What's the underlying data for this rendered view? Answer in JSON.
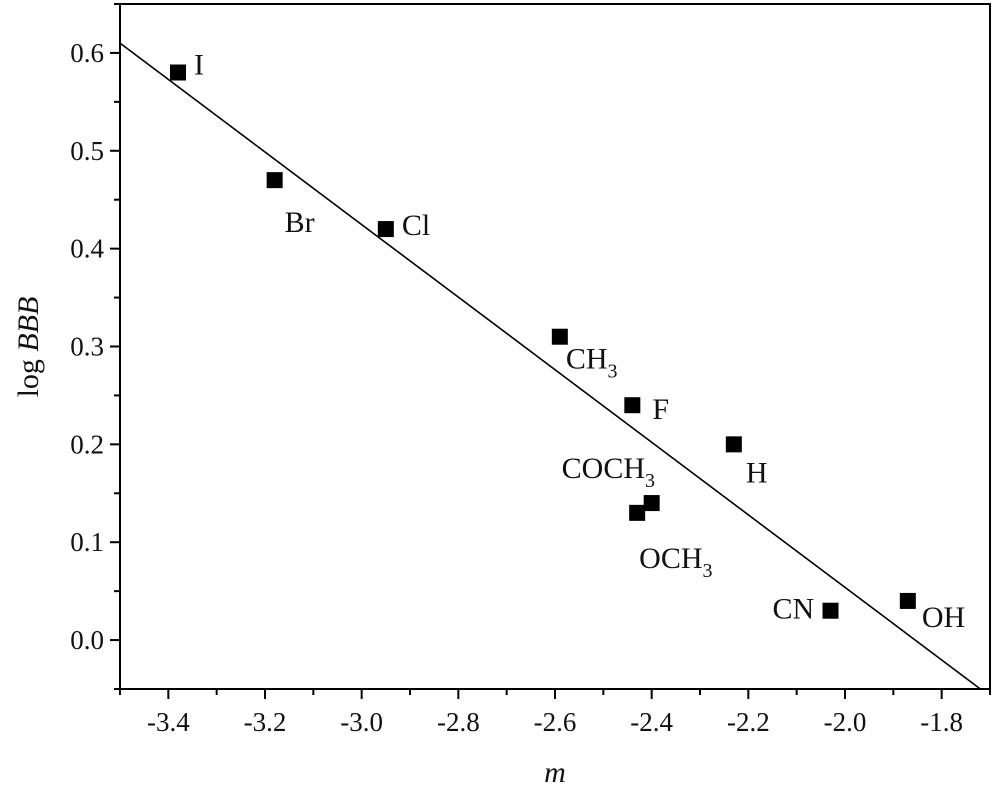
{
  "chart_data": {
    "type": "scatter",
    "title": "",
    "xlabel": "m",
    "ylabel_prefix": "log ",
    "ylabel_italic": "BBB",
    "xlim": [
      -3.5,
      -1.7
    ],
    "ylim": [
      -0.05,
      0.65
    ],
    "x_ticks": [
      -3.4,
      -3.2,
      -3.0,
      -2.8,
      -2.6,
      -2.4,
      -2.2,
      -2.0,
      -1.8
    ],
    "x_tick_labels": [
      "-3.4",
      "-3.2",
      "-3.0",
      "-2.8",
      "-2.6",
      "-2.4",
      "-2.2",
      "-2.0",
      "-1.8"
    ],
    "y_ticks": [
      0.0,
      0.1,
      0.2,
      0.3,
      0.4,
      0.5,
      0.6
    ],
    "y_tick_labels": [
      "0.0",
      "0.1",
      "0.2",
      "0.3",
      "0.4",
      "0.5",
      "0.6"
    ],
    "grid": false,
    "legend": "none",
    "marker_color": "#000000",
    "points": [
      {
        "x": -3.38,
        "y": 0.58,
        "label": "I",
        "label_sub": ""
      },
      {
        "x": -3.18,
        "y": 0.47,
        "label": "Br",
        "label_sub": ""
      },
      {
        "x": -2.95,
        "y": 0.42,
        "label": "Cl",
        "label_sub": ""
      },
      {
        "x": -2.59,
        "y": 0.31,
        "label": "CH",
        "label_sub": "3"
      },
      {
        "x": -2.44,
        "y": 0.24,
        "label": "F",
        "label_sub": ""
      },
      {
        "x": -2.4,
        "y": 0.14,
        "label": "COCH",
        "label_sub": "3"
      },
      {
        "x": -2.43,
        "y": 0.13,
        "label": "OCH",
        "label_sub": "3"
      },
      {
        "x": -2.23,
        "y": 0.2,
        "label": "H",
        "label_sub": ""
      },
      {
        "x": -2.03,
        "y": 0.03,
        "label": "CN",
        "label_sub": ""
      },
      {
        "x": -1.87,
        "y": 0.04,
        "label": "OH",
        "label_sub": ""
      }
    ],
    "fit_line": {
      "x": [
        -3.5,
        -1.72
      ],
      "y": [
        0.61,
        -0.05
      ]
    }
  }
}
